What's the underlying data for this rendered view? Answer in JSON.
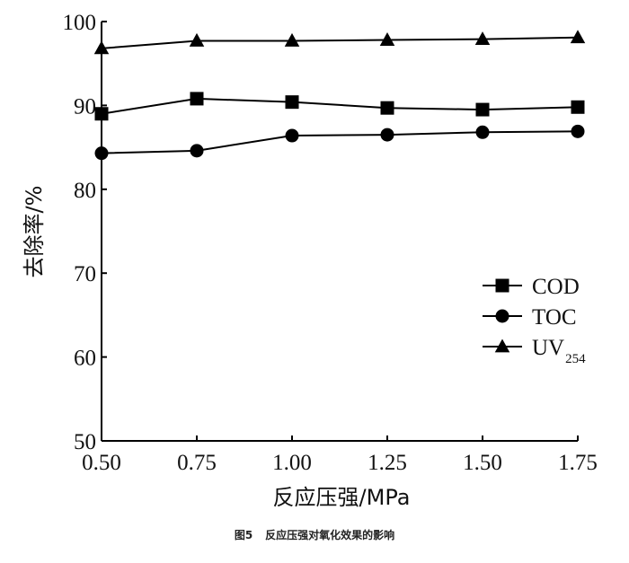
{
  "chart_data": {
    "type": "line",
    "title": "",
    "xlabel": "反应压强/MPa",
    "ylabel": "去除率/%",
    "x": [
      0.5,
      0.75,
      1.0,
      1.25,
      1.5,
      1.75
    ],
    "x_tick_labels": [
      "0.50",
      "0.75",
      "1.00",
      "1.25",
      "1.50",
      "1.75"
    ],
    "xlim": [
      0.5,
      1.75
    ],
    "ylim": [
      50,
      100
    ],
    "y_ticks": [
      50,
      60,
      70,
      80,
      90,
      100
    ],
    "y_tick_labels": [
      "50",
      "60",
      "70",
      "80",
      "90",
      "100"
    ],
    "grid": false,
    "legend_position": "right",
    "series": [
      {
        "name": "COD",
        "marker": "square",
        "values": [
          89.0,
          90.8,
          90.4,
          89.7,
          89.5,
          89.8
        ]
      },
      {
        "name": "TOC",
        "marker": "circle",
        "values": [
          84.3,
          84.6,
          86.4,
          86.5,
          86.8,
          86.9
        ]
      },
      {
        "name": "UV",
        "name_subscript": "254",
        "marker": "triangle",
        "values": [
          96.8,
          97.7,
          97.7,
          97.8,
          97.9,
          98.1
        ]
      }
    ]
  },
  "caption": {
    "figure_number": "图5",
    "text": "反应压强对氧化效果的影响"
  }
}
